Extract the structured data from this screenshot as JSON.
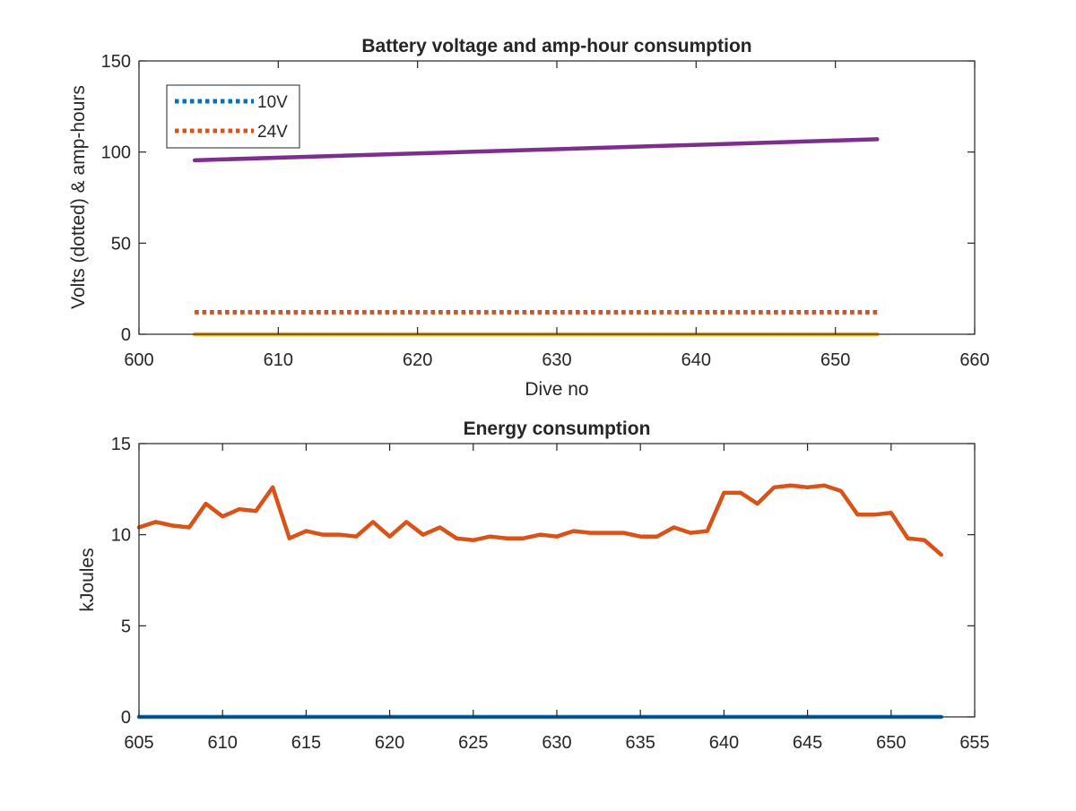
{
  "chart_data": [
    {
      "type": "line",
      "title": "Battery voltage and amp-hour consumption",
      "xlabel": "Dive no",
      "ylabel": "Volts (dotted) & amp-hours",
      "xlim": [
        600,
        660
      ],
      "ylim": [
        0,
        150
      ],
      "xticks": [
        600,
        610,
        620,
        630,
        640,
        650,
        660
      ],
      "yticks": [
        0,
        50,
        100,
        150
      ],
      "xtick_labels": [
        "600",
        "610",
        "620",
        "630",
        "640",
        "650",
        "660"
      ],
      "ytick_labels": [
        "0",
        "50",
        "100",
        "150"
      ],
      "grid": false,
      "legend_position": "top-left",
      "series": [
        {
          "name": "10V",
          "color": "#0072BD",
          "style": "dotted",
          "x": [
            604,
            653
          ],
          "y": [
            12.2,
            12.2
          ],
          "in_legend": true
        },
        {
          "name": "24V",
          "color": "#D95319",
          "style": "dotted",
          "x": [
            604,
            653
          ],
          "y": [
            12.0,
            12.0
          ],
          "in_legend": true
        },
        {
          "color": "#EDB120",
          "style": "solid",
          "x": [
            604,
            653
          ],
          "y": [
            0,
            0
          ],
          "in_legend": false
        },
        {
          "color": "#7E2F8E",
          "style": "solid",
          "x": [
            604,
            653
          ],
          "y": [
            95.5,
            107
          ],
          "in_legend": false
        }
      ]
    },
    {
      "type": "line",
      "title": "Energy consumption",
      "xlabel": "",
      "ylabel": "kJoules",
      "xlim": [
        605,
        655
      ],
      "ylim": [
        0,
        15
      ],
      "xticks": [
        605,
        610,
        615,
        620,
        625,
        630,
        635,
        640,
        645,
        650,
        655
      ],
      "yticks": [
        0,
        5,
        10,
        15
      ],
      "xtick_labels": [
        "605",
        "610",
        "615",
        "620",
        "625",
        "630",
        "635",
        "640",
        "645",
        "650",
        "655"
      ],
      "ytick_labels": [
        "0",
        "5",
        "10",
        "15"
      ],
      "grid": false,
      "series": [
        {
          "color": "#0072BD",
          "style": "solid",
          "x": [
            605,
            653
          ],
          "y": [
            0,
            0
          ]
        },
        {
          "color": "#D95319",
          "style": "solid",
          "x": [
            605,
            606,
            607,
            608,
            609,
            610,
            611,
            612,
            613,
            614,
            615,
            616,
            617,
            618,
            619,
            620,
            621,
            622,
            623,
            624,
            625,
            626,
            627,
            628,
            629,
            630,
            631,
            632,
            633,
            634,
            635,
            636,
            637,
            638,
            639,
            640,
            641,
            642,
            643,
            644,
            645,
            646,
            647,
            648,
            649,
            650,
            651,
            652,
            653
          ],
          "y": [
            10.4,
            10.7,
            10.5,
            10.4,
            11.7,
            11.0,
            11.4,
            11.3,
            12.6,
            9.8,
            10.2,
            10.0,
            10.0,
            9.9,
            10.7,
            9.9,
            10.7,
            10.0,
            10.4,
            9.8,
            9.7,
            9.9,
            9.8,
            9.8,
            10.0,
            9.9,
            10.2,
            10.1,
            10.1,
            10.1,
            9.9,
            9.9,
            10.4,
            10.1,
            10.2,
            12.3,
            12.3,
            11.7,
            12.6,
            12.7,
            12.6,
            12.7,
            12.4,
            11.1,
            11.1,
            11.2,
            9.8,
            9.7,
            8.9
          ]
        }
      ]
    }
  ]
}
